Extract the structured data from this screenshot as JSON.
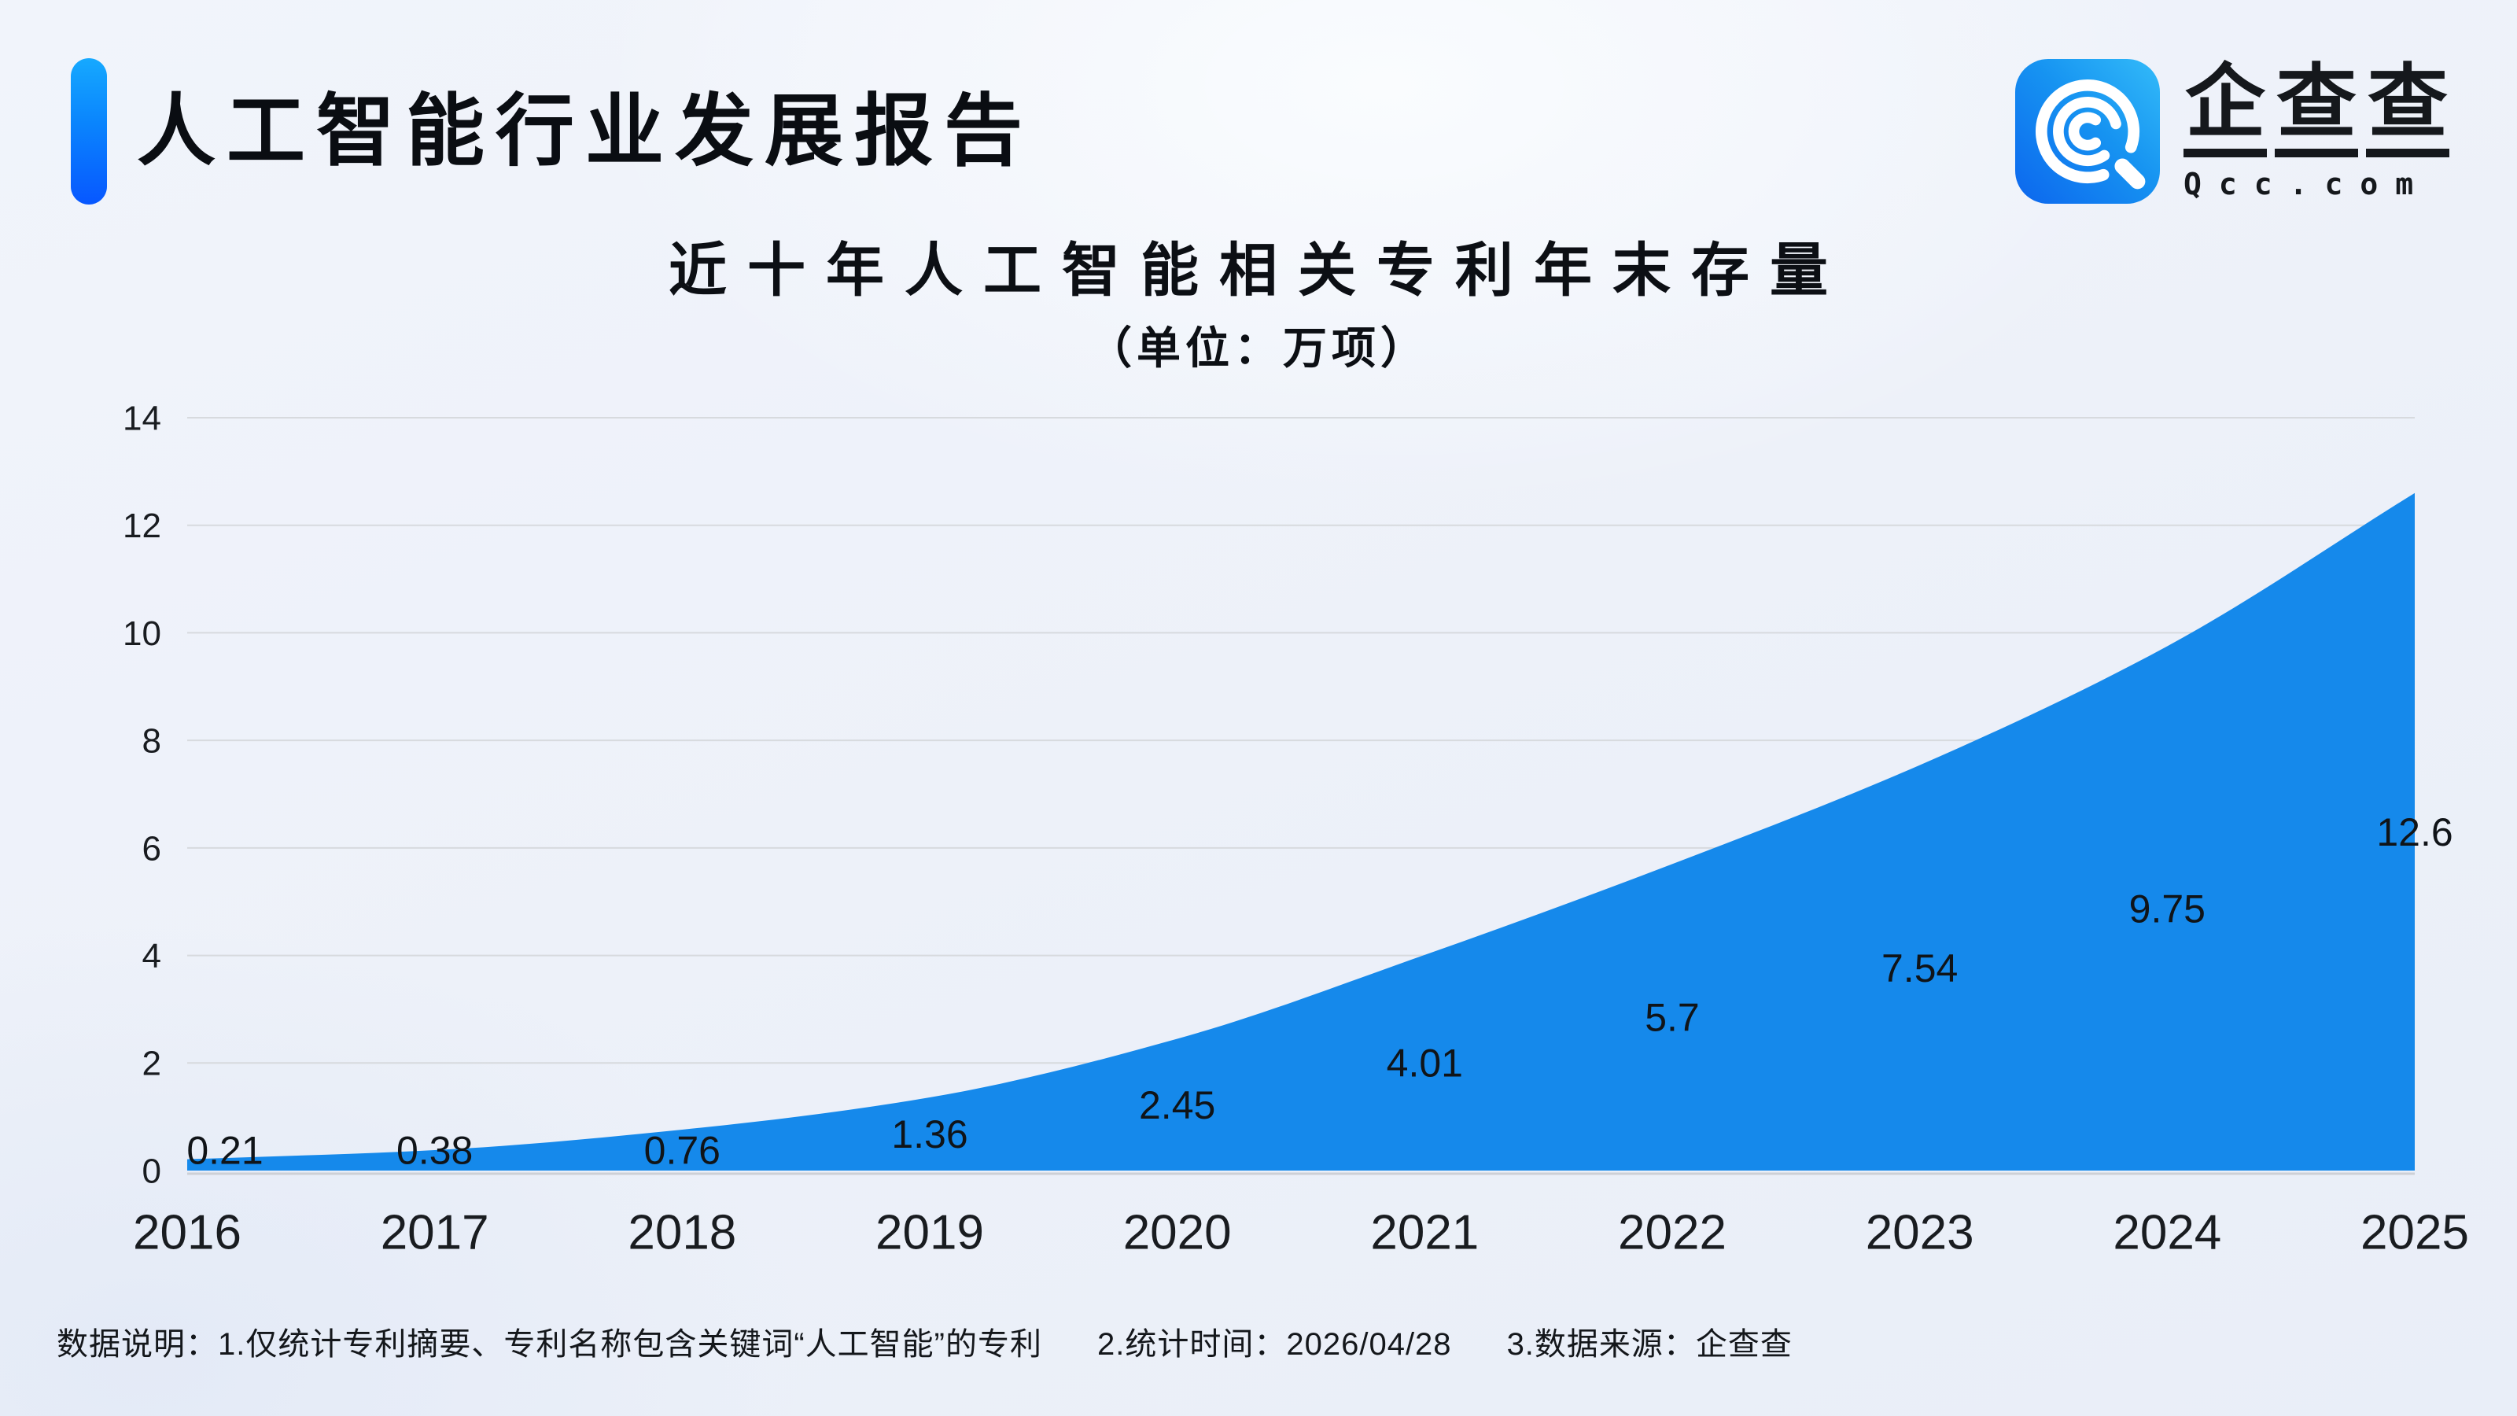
{
  "header": {
    "title": "人工智能行业发展报告",
    "brand_name_chars": [
      "企",
      "查",
      "查"
    ],
    "brand_domain": "Qcc.com",
    "accent_top_color": "#16a9ff",
    "accent_bottom_color": "#0757ff",
    "logo_gradient": [
      "#33bbf9",
      "#0c66ee"
    ]
  },
  "chart": {
    "title": "近十年人工智能相关专利年末存量",
    "subtitle": "（单位：万项）"
  },
  "chart_data": {
    "type": "area",
    "title": "近十年人工智能相关专利年末存量",
    "subtitle": "（单位：万项）",
    "unit": "万项",
    "categories": [
      "2016",
      "2017",
      "2018",
      "2019",
      "2020",
      "2021",
      "2022",
      "2023",
      "2024",
      "2025"
    ],
    "values": [
      0.21,
      0.38,
      0.76,
      1.36,
      2.45,
      4.01,
      5.7,
      7.54,
      9.75,
      12.6
    ],
    "data_labels": [
      "0.21",
      "0.38",
      "0.76",
      "1.36",
      "2.45",
      "4.01",
      "5.7",
      "7.54",
      "9.75",
      "12.6"
    ],
    "xlabel": "",
    "ylabel": "",
    "ylim": [
      0,
      14
    ],
    "ytick_step": 2,
    "yticks": [
      "0",
      "2",
      "4",
      "6",
      "8",
      "10",
      "12",
      "14"
    ],
    "grid": true,
    "legend": "none",
    "series_color": "#1589EB",
    "grid_color": "#d7dade",
    "baseline_color": "#cdd0d6",
    "label_color": "#101418",
    "axis_label_color": "#191c20",
    "smooth": true
  },
  "footer": {
    "parts": [
      "数据说明：1.仅统计专利摘要、专利名称包含关键词“人工智能”的专利",
      "2.统计时间：2026/04/28",
      "3.数据来源：企查查"
    ]
  }
}
